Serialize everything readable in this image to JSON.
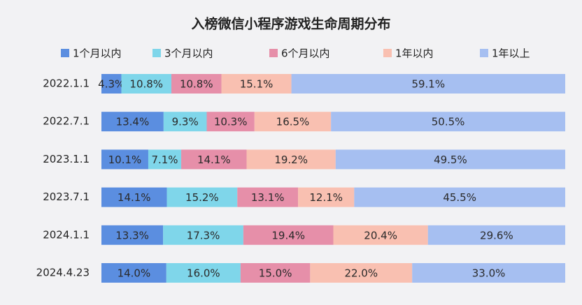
{
  "chart_data": {
    "type": "stacked_bar_horizontal",
    "title": "入榜微信小程序游戏生命周期分布",
    "categories": [
      "2022.1.1",
      "2022.7.1",
      "2023.1.1",
      "2023.7.1",
      "2024.1.1",
      "2024.4.23"
    ],
    "series": [
      {
        "name": "1个月以内",
        "color": "#5b8ee0",
        "values": [
          4.3,
          13.4,
          10.1,
          14.1,
          13.3,
          14.0
        ],
        "value_labels": [
          "4.3%",
          "13.4%",
          "10.1%",
          "14.1%",
          "13.3%",
          "14.0%"
        ]
      },
      {
        "name": "3个月以内",
        "color": "#7fd6ea",
        "values": [
          10.8,
          9.3,
          7.1,
          15.2,
          17.3,
          16.0
        ],
        "value_labels": [
          "10.8%",
          "9.3%",
          "7.1%",
          "15.2%",
          "17.3%",
          "16.0%"
        ]
      },
      {
        "name": "6个月以内",
        "color": "#e68fa9",
        "values": [
          10.8,
          10.3,
          14.1,
          13.1,
          19.4,
          15.0
        ],
        "value_labels": [
          "10.8%",
          "10.3%",
          "14.1%",
          "13.1%",
          "19.4%",
          "15.0%"
        ]
      },
      {
        "name": "1年以内",
        "color": "#f9c0b1",
        "values": [
          15.1,
          16.5,
          19.2,
          12.1,
          20.4,
          22.0
        ],
        "value_labels": [
          "15.1%",
          "16.5%",
          "19.2%",
          "12.1%",
          "20.4%",
          "22.0%"
        ]
      },
      {
        "name": "1年以上",
        "color": "#a6bff1",
        "values": [
          59.1,
          50.5,
          49.5,
          45.5,
          29.6,
          33.0
        ],
        "value_labels": [
          "59.1%",
          "50.5%",
          "49.5%",
          "45.5%",
          "29.6%",
          "33.0%"
        ]
      }
    ]
  }
}
